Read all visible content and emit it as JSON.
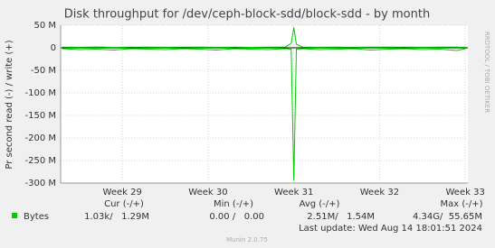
{
  "chart_data": {
    "type": "line",
    "title": "Disk throughput for /dev/ceph-block-sdd/block-sdd - by month",
    "y_label": "Pr second read (-) / write (+)",
    "side_label": "RRDTOOL / TOBI OETIKER",
    "x": [
      28.3,
      28.5,
      28.7,
      28.9,
      29.1,
      29.3,
      29.5,
      29.7,
      29.9,
      30.1,
      30.3,
      30.5,
      30.7,
      30.9,
      30.97,
      31.0,
      31.03,
      31.1,
      31.3,
      31.5,
      31.7,
      31.9,
      32.1,
      32.3,
      32.5,
      32.7,
      32.9,
      33.0
    ],
    "xlim": [
      28.28,
      33.03
    ],
    "xticks": [
      {
        "value": 29,
        "label": "Week 29"
      },
      {
        "value": 30,
        "label": "Week 30"
      },
      {
        "value": 31,
        "label": "Week 31"
      },
      {
        "value": 32,
        "label": "Week 32"
      },
      {
        "value": 33,
        "label": "Week 33"
      }
    ],
    "ylim": [
      -300,
      50
    ],
    "yticks": [
      {
        "value": -300,
        "label": "-300 M"
      },
      {
        "value": -250,
        "label": "-250 M"
      },
      {
        "value": -200,
        "label": "-200 M"
      },
      {
        "value": -150,
        "label": "-150 M"
      },
      {
        "value": -100,
        "label": "-100 M"
      },
      {
        "value": -50,
        "label": "-50 M"
      },
      0,
      {
        "value": 50,
        "label": "50 M"
      }
    ],
    "grid": true,
    "series": [
      {
        "color": "#00cc00",
        "values": [
          1.5,
          1.2,
          1.8,
          1.0,
          1.4,
          1.6,
          1.1,
          1.3,
          1.7,
          1.2,
          1.5,
          1.0,
          1.4,
          1.6,
          10,
          45,
          8,
          1.3,
          1.2,
          1.5,
          1.1,
          1.6,
          1.3,
          1.4,
          1.2,
          1.5,
          1.3,
          1.29
        ]
      },
      {
        "color": "#00cc00",
        "values": [
          -2,
          -4,
          -3,
          -5,
          -2,
          -3,
          -4,
          -2,
          -3,
          -5,
          -2,
          -3,
          -4,
          -2,
          -3,
          -295,
          -3,
          -2,
          -4,
          -3,
          -2,
          -5,
          -3,
          -2,
          -4,
          -3,
          -6,
          -2
        ]
      }
    ],
    "legend": {
      "swatch_color": "#00cc00",
      "label": "Bytes",
      "headers": [
        "Cur (-/+)",
        "Min (-/+)",
        "Avg (-/+)",
        "Max (-/+)"
      ],
      "stats": [
        "1.03k/   1.29M",
        "0.00 /   0.00",
        "2.51M/   1.54M",
        "4.34G/  55.65M"
      ]
    },
    "last_update": "Last update: Wed Aug 14 18:01:51 2024",
    "footer": "Munin 2.0.75"
  }
}
